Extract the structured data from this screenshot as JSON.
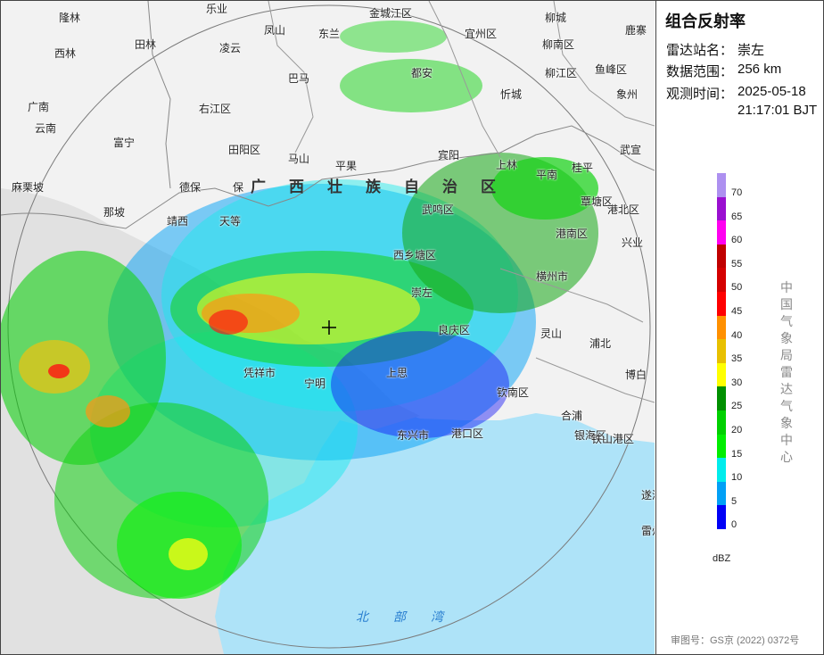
{
  "panel": {
    "title": "组合反射率",
    "info": [
      {
        "label": "雷达站名：",
        "value": "崇左"
      },
      {
        "label": "数据范围：",
        "value": "256 km"
      },
      {
        "label": "观测时间：",
        "value": "2025-05-18",
        "value2": "21:17:01 BJT"
      }
    ],
    "legend": {
      "unit": "dBZ",
      "ticks": [
        "70",
        "65",
        "60",
        "55",
        "50",
        "45",
        "40",
        "35",
        "30",
        "25",
        "20",
        "15",
        "10",
        "5",
        "0"
      ],
      "colors": [
        "#ad90f0",
        "#9a0fd0",
        "#ff00f0",
        "#c00000",
        "#d40000",
        "#ff0000",
        "#ff9000",
        "#e8c000",
        "#ffff00",
        "#009000",
        "#00d000",
        "#00ee00",
        "#00ecec",
        "#01a0f6",
        "#0000f6"
      ]
    },
    "organization": "中国气象局雷达气象中心",
    "approval": "审图号：GS京 (2022) 0372号"
  },
  "map": {
    "places": [
      "隆林",
      "乐业",
      "金城江区",
      "柳城",
      "鹿寨",
      "西林",
      "田林",
      "凌云",
      "凤山",
      "东兰",
      "宜州区",
      "柳南区",
      "巴马",
      "都安",
      "忻城",
      "柳江区",
      "鱼峰区",
      "象州",
      "广南",
      "云南",
      "右江区",
      "上林",
      "富宁",
      "田阳区",
      "马山",
      "宾阳",
      "武宣",
      "麻栗坡",
      "保",
      "德保",
      "平果",
      "广西",
      "壮族",
      "自",
      "治",
      "区",
      "平南",
      "桂平",
      "那坡",
      "靖西",
      "天等",
      "武鸣区",
      "港北区",
      "覃塘区",
      "西乡塘区",
      "港南区",
      "兴业",
      "横州市",
      "灵山",
      "浦北",
      "崇左",
      "良庆区",
      "博白",
      "凭祥市",
      "宁明",
      "上思",
      "钦南区",
      "合浦",
      "东兴市",
      "港口区",
      "银海区",
      "铁山港区",
      "遂溪",
      "雷州",
      "北部湾"
    ],
    "region_label": "广西壮族自治区",
    "sea_label": "北部湾"
  }
}
